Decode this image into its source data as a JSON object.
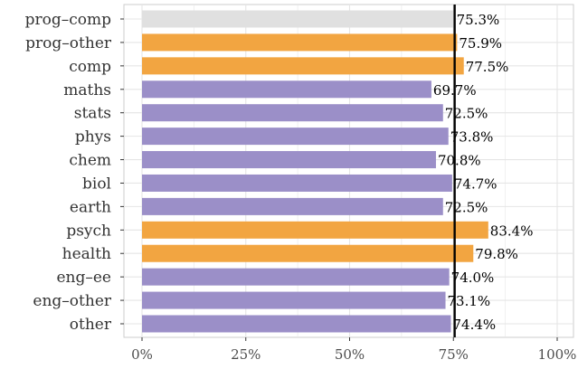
{
  "chart_data": {
    "type": "bar",
    "orientation": "horizontal",
    "categories": [
      "prog–comp",
      "prog–other",
      "comp",
      "maths",
      "stats",
      "phys",
      "chem",
      "biol",
      "earth",
      "psych",
      "health",
      "eng–ee",
      "eng–other",
      "other"
    ],
    "values": [
      75.3,
      75.9,
      77.5,
      69.7,
      72.5,
      73.8,
      70.8,
      74.7,
      72.5,
      83.4,
      79.8,
      74.0,
      73.1,
      74.4
    ],
    "value_labels": [
      "75.3%",
      "75.9%",
      "77.5%",
      "69.7%",
      "72.5%",
      "73.8%",
      "70.8%",
      "74.7%",
      "72.5%",
      "83.4%",
      "79.8%",
      "74.0%",
      "73.1%",
      "74.4%"
    ],
    "groups": [
      "reference",
      "highlight",
      "highlight",
      "base",
      "base",
      "base",
      "base",
      "base",
      "base",
      "highlight",
      "highlight",
      "base",
      "base",
      "base"
    ],
    "colors": {
      "reference": "#e0e0e0",
      "highlight": "#f2a541",
      "base": "#9b8fc8",
      "reference_line": "#000000",
      "grid": "#e5e5e5"
    },
    "reference_value": 75.3,
    "xlim": [
      0,
      100
    ],
    "x_ticks": [
      0,
      25,
      50,
      75,
      100
    ],
    "x_tick_labels": [
      "0%",
      "25%",
      "50%",
      "75%",
      "100%"
    ],
    "grid": true,
    "title": "",
    "xlabel": "",
    "ylabel": ""
  }
}
